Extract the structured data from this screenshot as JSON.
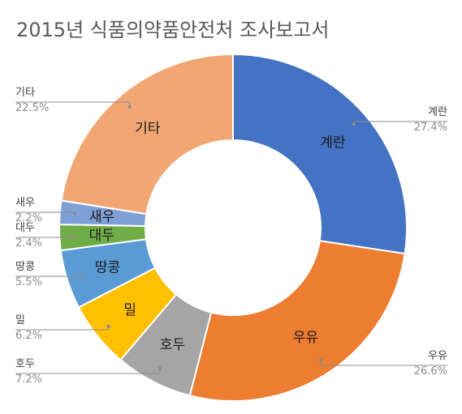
{
  "chart_data": {
    "type": "pie",
    "variant": "donut",
    "title": "2015년 식품의약품안전처 조사보고서",
    "legend": "none",
    "slices": [
      {
        "label": "계란",
        "value": 27.4,
        "pct_label": "27.4%",
        "color": "#4472C4"
      },
      {
        "label": "우유",
        "value": 26.6,
        "pct_label": "26.6%",
        "color": "#ED7D31"
      },
      {
        "label": "호두",
        "value": 7.2,
        "pct_label": "7.2%",
        "color": "#A5A5A5"
      },
      {
        "label": "밀",
        "value": 6.2,
        "pct_label": "6.2%",
        "color": "#FFC000"
      },
      {
        "label": "땅콩",
        "value": 5.5,
        "pct_label": "5.5%",
        "color": "#5B9BD5"
      },
      {
        "label": "대두",
        "value": 2.4,
        "pct_label": "2.4%",
        "color": "#70AD47"
      },
      {
        "label": "새우",
        "value": 2.2,
        "pct_label": "2.2%",
        "color": "#7F9FD8"
      },
      {
        "label": "기타",
        "value": 22.5,
        "pct_label": "22.5%",
        "color": "#F2A673"
      }
    ]
  }
}
